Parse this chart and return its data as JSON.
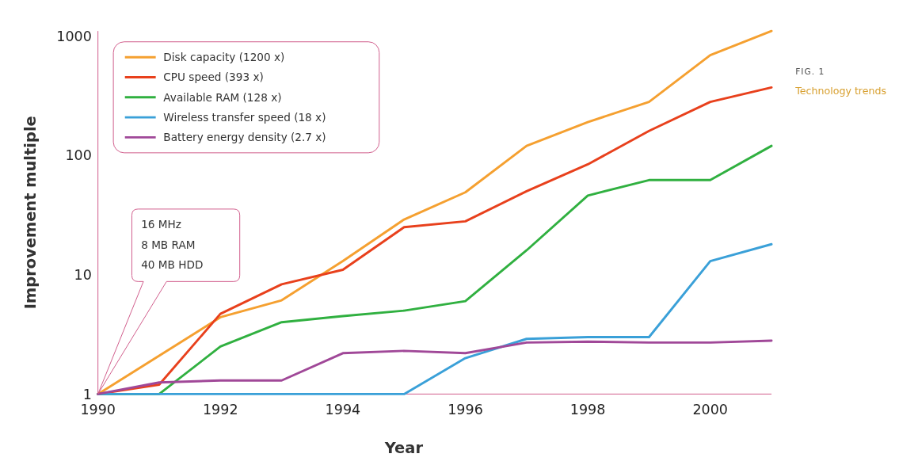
{
  "chart_data": {
    "type": "line",
    "title": "Technology trends",
    "subtitle": "FIG. 1",
    "xlabel": "Year",
    "ylabel": "Improvement multiple",
    "log": "y",
    "xlim": [
      1990,
      2001
    ],
    "xticks": [
      1990,
      1992,
      1994,
      1996,
      1998,
      2000
    ],
    "ylim": [
      1,
      1100
    ],
    "yticks": [
      1,
      10,
      100,
      1000
    ],
    "grid": false,
    "legend": "top left",
    "marker": "none",
    "line_style": "solid",
    "x": [
      1990,
      1991,
      1992,
      1993,
      1994,
      1995,
      1996,
      1997,
      1998,
      1999,
      2000,
      2001
    ],
    "series": [
      {
        "name": "Disk capacity (1200 x)",
        "color": "#f5a030",
        "values": [
          1,
          null,
          4.4,
          6.1,
          13,
          29,
          49,
          120,
          190,
          280,
          690,
          1100
        ]
      },
      {
        "name": "CPU speed (393 x)",
        "color": "#e8401c",
        "values": [
          1,
          1.2,
          4.7,
          8.3,
          11,
          25,
          28,
          50,
          84,
          160,
          280,
          370
        ]
      },
      {
        "name": "Available RAM (128 x)",
        "color": "#30b040",
        "values": [
          1,
          1,
          2.5,
          4,
          4.5,
          5,
          6,
          16,
          46,
          62,
          62,
          120
        ]
      },
      {
        "name": "Wireless transfer speed (18 x)",
        "color": "#3aa0d8",
        "values": [
          1,
          1,
          1,
          1,
          1,
          1,
          2,
          2.9,
          3,
          3,
          13,
          18
        ]
      },
      {
        "name": "Battery energy density (2.7 x)",
        "color": "#a04898",
        "values": [
          1,
          1.25,
          1.3,
          1.3,
          2.2,
          2.3,
          2.2,
          2.7,
          2.75,
          2.7,
          2.7,
          2.8
        ]
      }
    ],
    "annotations": [
      "16 MHz\n8 MB RAM\n40 MB HDD"
    ]
  }
}
